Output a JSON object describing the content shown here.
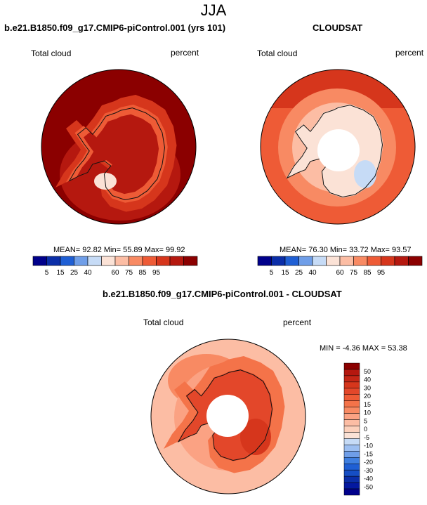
{
  "season": "JJA",
  "colors": {
    "coast": "#111111",
    "hole": "#ffffff",
    "panel_a_levels": [
      "#00008b",
      "#0b2ea8",
      "#1f5fd4",
      "#6f9ee8",
      "#c6dbf6",
      "#fbe2d6",
      "#fcbda4",
      "#f88a63",
      "#ee5b36",
      "#d6361c",
      "#b5180f",
      "#8b0000"
    ],
    "panel_b_levels": [
      "#00008b",
      "#0b2ea8",
      "#1f5fd4",
      "#6f9ee8",
      "#c6dbf6",
      "#fbe2d6",
      "#fcbda4",
      "#f88a63",
      "#ee5b36",
      "#d6361c",
      "#b5180f",
      "#8b0000"
    ],
    "diff_levels": [
      "#00008b",
      "#0418a0",
      "#0b2ea8",
      "#164ec4",
      "#1f5fd4",
      "#3f7fe0",
      "#6f9ee8",
      "#9dbff1",
      "#c6dbf6",
      "#fbe2d6",
      "#fcd0bb",
      "#fcbda4",
      "#fba283",
      "#f88a63",
      "#f47349",
      "#ee5b36",
      "#e3472a",
      "#d6361c",
      "#c42616",
      "#b5180f",
      "#8b0000"
    ]
  },
  "chart_data": [
    {
      "type": "heatmap",
      "id": "panel_a",
      "title": "b.e21.B1850.f09_g17.CMIP6-piControl.001 (yrs 101)",
      "variable": "Total cloud",
      "units": "percent",
      "projection": "south-polar-stereographic",
      "stats": {
        "mean_label": "MEAN=",
        "mean": "92.82",
        "min_label": "Min=",
        "min": "55.89",
        "max_label": "Max=",
        "max": "99.92"
      },
      "colorbar_orientation": "horizontal",
      "colorbar_labels": [
        "5",
        "15",
        "25",
        "40",
        "60",
        "75",
        "85",
        "95"
      ],
      "field": {
        "range": [
          55.89,
          99.92
        ],
        "typical": 97,
        "antarctic_plateau": 88,
        "coastal_margin": 80,
        "antarctic_peninsula": 60
      }
    },
    {
      "type": "heatmap",
      "id": "panel_b",
      "title": "CLOUDSAT",
      "variable": "Total cloud",
      "units": "percent",
      "projection": "south-polar-stereographic",
      "stats": {
        "mean_label": "MEAN=",
        "mean": "76.30",
        "min_label": "Min=",
        "min": "33.72",
        "max_label": "Max=",
        "max": "93.57"
      },
      "colorbar_orientation": "horizontal",
      "colorbar_labels": [
        "5",
        "15",
        "25",
        "40",
        "60",
        "75",
        "85",
        "95"
      ],
      "field": {
        "range": [
          33.72,
          93.57
        ],
        "open_ocean": 85,
        "sea_ice_zone": 75,
        "antarctic_plateau": 55,
        "east_antarctica_low": 38,
        "polar_hole": "no data"
      }
    },
    {
      "type": "heatmap",
      "id": "difference",
      "title": "b.e21.B1850.f09_g17.CMIP6-piControl.001 - CLOUDSAT",
      "variable": "Total cloud",
      "units": "percent",
      "projection": "south-polar-stereographic",
      "stats": {
        "min_label": "MIN =",
        "min": "-4.36",
        "max_label": "MAX =",
        "max": "53.38"
      },
      "colorbar_orientation": "vertical",
      "colorbar_labels": [
        "50",
        "40",
        "30",
        "20",
        "15",
        "10",
        "5",
        "0",
        "-5",
        "-10",
        "-15",
        "-20",
        "-30",
        "-40",
        "-50"
      ],
      "field": {
        "range": [
          -4.36,
          53.38
        ],
        "open_ocean": 12,
        "sea_ice_zone": 20,
        "antarctic_interior": 40,
        "coastal_ice_edge": 0,
        "polar_hole": "no data"
      }
    }
  ]
}
